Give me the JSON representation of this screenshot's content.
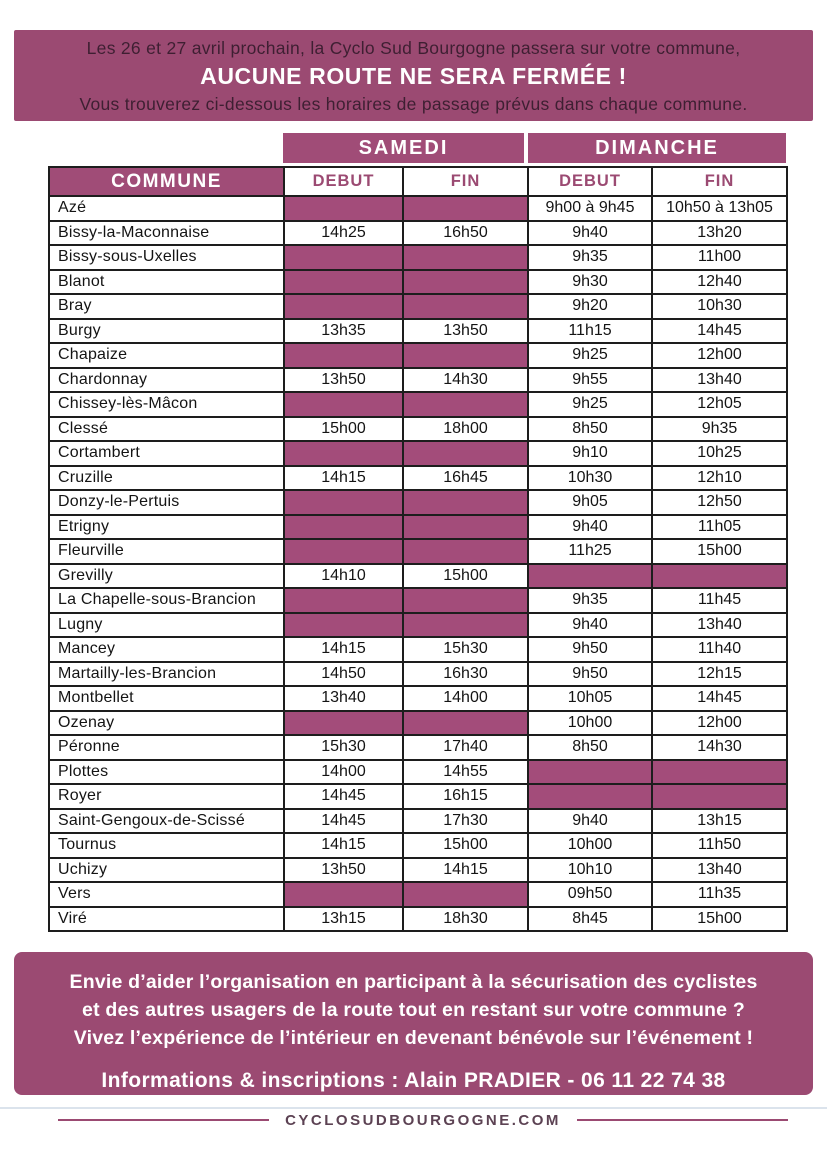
{
  "top_banner": {
    "line1": "Les 26 et 27 avril prochain, la Cyclo Sud Bourgogne passera sur votre commune,",
    "line2": "AUCUNE ROUTE NE SERA FERMÉE !",
    "line3": "Vous trouverez ci-dessous les horaires de passage prévus dans chaque commune."
  },
  "table": {
    "commune_header": "COMMUNE",
    "day_headers": [
      "SAMEDI",
      "DIMANCHE"
    ],
    "sub_headers": [
      "DEBUT",
      "FIN",
      "DEBUT",
      "FIN"
    ],
    "rows": [
      {
        "commune": "Azé",
        "sam_debut": "",
        "sam_fin": "",
        "dim_debut": "9h00 à 9h45",
        "dim_fin": "10h50 à 13h05"
      },
      {
        "commune": "Bissy-la-Maconnaise",
        "sam_debut": "14h25",
        "sam_fin": "16h50",
        "dim_debut": "9h40",
        "dim_fin": "13h20"
      },
      {
        "commune": "Bissy-sous-Uxelles",
        "sam_debut": "",
        "sam_fin": "",
        "dim_debut": "9h35",
        "dim_fin": "11h00"
      },
      {
        "commune": "Blanot",
        "sam_debut": "",
        "sam_fin": "",
        "dim_debut": "9h30",
        "dim_fin": "12h40"
      },
      {
        "commune": "Bray",
        "sam_debut": "",
        "sam_fin": "",
        "dim_debut": "9h20",
        "dim_fin": "10h30"
      },
      {
        "commune": "Burgy",
        "sam_debut": "13h35",
        "sam_fin": "13h50",
        "dim_debut": "11h15",
        "dim_fin": "14h45"
      },
      {
        "commune": "Chapaize",
        "sam_debut": "",
        "sam_fin": "",
        "dim_debut": "9h25",
        "dim_fin": "12h00"
      },
      {
        "commune": "Chardonnay",
        "sam_debut": "13h50",
        "sam_fin": "14h30",
        "dim_debut": "9h55",
        "dim_fin": "13h40"
      },
      {
        "commune": "Chissey-lès-Mâcon",
        "sam_debut": "",
        "sam_fin": "",
        "dim_debut": "9h25",
        "dim_fin": "12h05"
      },
      {
        "commune": "Clessé",
        "sam_debut": "15h00",
        "sam_fin": "18h00",
        "dim_debut": "8h50",
        "dim_fin": "9h35"
      },
      {
        "commune": "Cortambert",
        "sam_debut": "",
        "sam_fin": "",
        "dim_debut": "9h10",
        "dim_fin": "10h25"
      },
      {
        "commune": "Cruzille",
        "sam_debut": "14h15",
        "sam_fin": "16h45",
        "dim_debut": "10h30",
        "dim_fin": "12h10"
      },
      {
        "commune": "Donzy-le-Pertuis",
        "sam_debut": "",
        "sam_fin": "",
        "dim_debut": "9h05",
        "dim_fin": "12h50"
      },
      {
        "commune": "Etrigny",
        "sam_debut": "",
        "sam_fin": "",
        "dim_debut": "9h40",
        "dim_fin": "11h05"
      },
      {
        "commune": "Fleurville",
        "sam_debut": "",
        "sam_fin": "",
        "dim_debut": "11h25",
        "dim_fin": "15h00"
      },
      {
        "commune": "Grevilly",
        "sam_debut": "14h10",
        "sam_fin": "15h00",
        "dim_debut": "",
        "dim_fin": ""
      },
      {
        "commune": "La Chapelle-sous-Brancion",
        "sam_debut": "",
        "sam_fin": "",
        "dim_debut": "9h35",
        "dim_fin": "11h45"
      },
      {
        "commune": "Lugny",
        "sam_debut": "",
        "sam_fin": "",
        "dim_debut": "9h40",
        "dim_fin": "13h40"
      },
      {
        "commune": "Mancey",
        "sam_debut": "14h15",
        "sam_fin": "15h30",
        "dim_debut": "9h50",
        "dim_fin": "11h40"
      },
      {
        "commune": "Martailly-les-Brancion",
        "sam_debut": "14h50",
        "sam_fin": "16h30",
        "dim_debut": "9h50",
        "dim_fin": "12h15"
      },
      {
        "commune": "Montbellet",
        "sam_debut": "13h40",
        "sam_fin": "14h00",
        "dim_debut": "10h05",
        "dim_fin": "14h45"
      },
      {
        "commune": "Ozenay",
        "sam_debut": "",
        "sam_fin": "",
        "dim_debut": "10h00",
        "dim_fin": "12h00"
      },
      {
        "commune": "Péronne",
        "sam_debut": "15h30",
        "sam_fin": "17h40",
        "dim_debut": "8h50",
        "dim_fin": "14h30"
      },
      {
        "commune": "Plottes",
        "sam_debut": "14h00",
        "sam_fin": "14h55",
        "dim_debut": "",
        "dim_fin": ""
      },
      {
        "commune": "Royer",
        "sam_debut": "14h45",
        "sam_fin": "16h15",
        "dim_debut": "",
        "dim_fin": ""
      },
      {
        "commune": "Saint-Gengoux-de-Scissé",
        "sam_debut": "14h45",
        "sam_fin": "17h30",
        "dim_debut": "9h40",
        "dim_fin": "13h15"
      },
      {
        "commune": "Tournus",
        "sam_debut": "14h15",
        "sam_fin": "15h00",
        "dim_debut": "10h00",
        "dim_fin": "11h50"
      },
      {
        "commune": "Uchizy",
        "sam_debut": "13h50",
        "sam_fin": "14h15",
        "dim_debut": "10h10",
        "dim_fin": "13h40"
      },
      {
        "commune": "Vers",
        "sam_debut": "",
        "sam_fin": "",
        "dim_debut": "09h50",
        "dim_fin": "11h35"
      },
      {
        "commune": "Viré",
        "sam_debut": "13h15",
        "sam_fin": "18h30",
        "dim_debut": "8h45",
        "dim_fin": "15h00"
      }
    ]
  },
  "bottom_banner": {
    "line1": "Envie d’aider l’organisation en participant à la sécurisation des cyclistes",
    "line2": "et des autres usagers de la route tout en restant sur votre commune ?",
    "line3": "Vivez l’expérience de l’intérieur en devenant bénévole sur l’événement !",
    "contact": "Informations & inscriptions : Alain PRADIER - 06 11 22 74 38"
  },
  "footer": {
    "website": "CYCLOSUDBOURGOGNE.COM"
  },
  "colors": {
    "banner_purple": "#9B4A72",
    "header_purple": "#A04C77",
    "cell_fill_purple": "#A34C7A",
    "table_border": "#1D1D1D",
    "footer_rule": "#9B4A72"
  }
}
